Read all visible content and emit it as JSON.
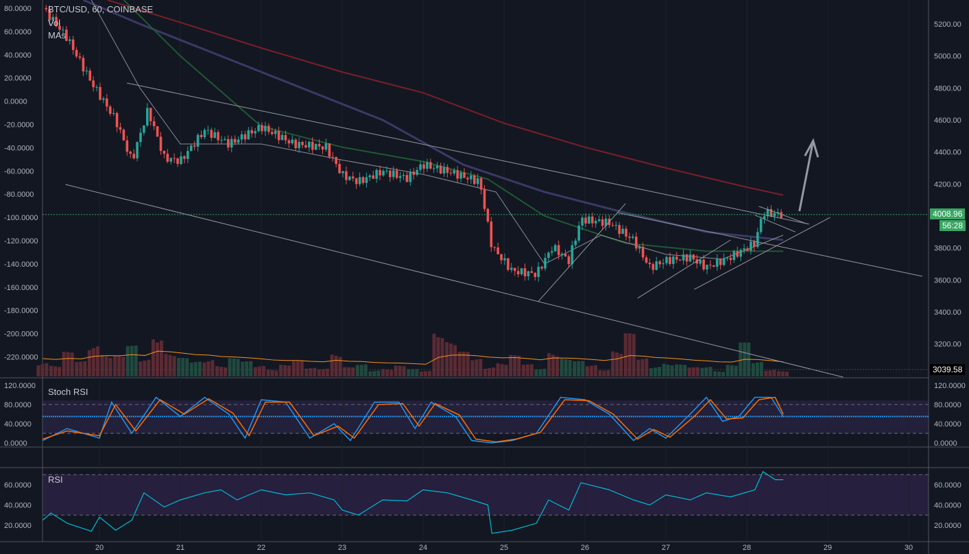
{
  "legend": {
    "symbol": "BTC/USD, 60, COINBASE",
    "vol": "Vol",
    "mas": "MAs",
    "stoch": "Stoch RSI",
    "rsi": "RSI"
  },
  "price_tag": {
    "price": "4008.96",
    "countdown": "56:28",
    "volume_tag": "3039.58",
    "color": "#3aa563"
  },
  "colors": {
    "up": "#26a69a",
    "down": "#ef5350",
    "bg": "#131722",
    "ma_fast": "#8a8d96",
    "ma_mid": "#1f5a32",
    "ma_slow": "#3a3a66",
    "ma_200": "#7a1f28",
    "stoch_k": "#2196f3",
    "stoch_d": "#ff6d00",
    "rsi": "#00bcd4",
    "level": "#2196f3"
  },
  "chart_data": [
    {
      "type": "candlestick",
      "title": "BTC/USD, 60, COINBASE",
      "x_ticks": [
        "20",
        "21",
        "22",
        "23",
        "24",
        "25",
        "26",
        "27",
        "28",
        "29",
        "30"
      ],
      "y_ticks_right": [
        "5200.00",
        "5000.00",
        "4800.00",
        "4600.00",
        "4400.00",
        "4200.00",
        "3800.00",
        "3600.00",
        "3400.00",
        "3200.00"
      ],
      "y_ticks_left": [
        "80.0000",
        "60.0000",
        "40.0000",
        "20.0000",
        "0.0000",
        "-20.0000",
        "-40.0000",
        "-60.0000",
        "-80.0000",
        "-100.0000",
        "-120.0000",
        "-140.0000",
        "-160.0000",
        "-180.0000",
        "-200.0000",
        "-220.0000"
      ],
      "ylim": [
        3000,
        5350
      ],
      "close_path": [
        [
          19.3,
          5300
        ],
        [
          19.6,
          5114
        ],
        [
          19.9,
          4836
        ],
        [
          20.2,
          4600
        ],
        [
          20.4,
          4343
        ],
        [
          20.6,
          4664
        ],
        [
          20.8,
          4364
        ],
        [
          21.0,
          4343
        ],
        [
          21.3,
          4536
        ],
        [
          21.6,
          4450
        ],
        [
          22.0,
          4557
        ],
        [
          22.4,
          4450
        ],
        [
          22.8,
          4429
        ],
        [
          23.0,
          4257
        ],
        [
          23.2,
          4214
        ],
        [
          23.5,
          4279
        ],
        [
          23.8,
          4236
        ],
        [
          24.0,
          4321
        ],
        [
          24.3,
          4279
        ],
        [
          24.7,
          4214
        ],
        [
          24.85,
          3807
        ],
        [
          25.1,
          3657
        ],
        [
          25.4,
          3636
        ],
        [
          25.6,
          3807
        ],
        [
          25.8,
          3721
        ],
        [
          25.95,
          3979
        ],
        [
          26.3,
          3957
        ],
        [
          26.6,
          3850
        ],
        [
          26.8,
          3679
        ],
        [
          27.0,
          3721
        ],
        [
          27.3,
          3743
        ],
        [
          27.5,
          3679
        ],
        [
          27.8,
          3743
        ],
        [
          28.1,
          3829
        ],
        [
          28.2,
          4021
        ],
        [
          28.45,
          4009
        ]
      ],
      "ma_200": [
        [
          20.1,
          5350
        ],
        [
          21,
          5210
        ],
        [
          22,
          5050
        ],
        [
          23,
          4900
        ],
        [
          24,
          4770
        ],
        [
          25,
          4580
        ],
        [
          26,
          4430
        ],
        [
          27,
          4300
        ],
        [
          28,
          4180
        ],
        [
          28.45,
          4130
        ]
      ],
      "ma_100": [
        [
          19.8,
          5350
        ],
        [
          20.5,
          5200
        ],
        [
          21.5,
          5000
        ],
        [
          22.5,
          4800
        ],
        [
          23.5,
          4600
        ],
        [
          24.5,
          4320
        ],
        [
          25.5,
          4150
        ],
        [
          26.5,
          4020
        ],
        [
          27.5,
          3900
        ],
        [
          28.45,
          3850
        ]
      ],
      "ma_50": [
        [
          20.3,
          5350
        ],
        [
          21,
          5000
        ],
        [
          22,
          4560
        ],
        [
          23,
          4430
        ],
        [
          24,
          4340
        ],
        [
          24.8,
          4230
        ],
        [
          25.5,
          4000
        ],
        [
          26.5,
          3830
        ],
        [
          27.5,
          3780
        ],
        [
          28.45,
          3780
        ]
      ],
      "ma_20": [
        [
          19.9,
          5350
        ],
        [
          20.5,
          4800
        ],
        [
          21,
          4450
        ],
        [
          22,
          4450
        ],
        [
          23,
          4350
        ],
        [
          24,
          4260
        ],
        [
          24.9,
          4150
        ],
        [
          25.5,
          3700
        ],
        [
          26.2,
          3880
        ],
        [
          27,
          3760
        ],
        [
          27.7,
          3730
        ],
        [
          28.45,
          3880
        ]
      ],
      "trendlines": [
        [
          [
            20.34,
            4831
          ],
          [
            28.77,
            3949
          ]
        ],
        [
          [
            19.58,
            4197
          ],
          [
            29.19,
            2993
          ]
        ],
        [
          [
            26.4,
            4021
          ],
          [
            30.17,
            3623
          ]
        ],
        [
          [
            25.42,
            3464
          ],
          [
            26.5,
            4077
          ]
        ],
        [
          [
            26.65,
            3486
          ],
          [
            27.8,
            3850
          ]
        ],
        [
          [
            27.35,
            3541
          ],
          [
            29.03,
            3991
          ]
        ],
        [
          [
            28.15,
            4060
          ],
          [
            28.75,
            3950
          ]
        ],
        [
          [
            28.1,
            4005
          ],
          [
            28.6,
            3900
          ]
        ]
      ],
      "arrow": [
        [
          28.65,
          4030
        ],
        [
          28.82,
          4470
        ]
      ],
      "last_price": 4008.96,
      "volume": [
        30,
        20,
        40,
        25,
        60,
        45,
        35,
        50,
        30,
        90,
        40,
        30,
        25,
        35,
        20,
        30,
        25,
        20,
        15,
        20,
        25,
        15,
        18,
        40,
        15,
        20,
        12,
        15,
        18,
        12,
        10,
        100,
        60,
        40,
        30,
        20,
        25,
        35,
        20,
        15,
        50,
        30,
        25,
        20,
        15,
        45,
        70,
        30,
        20,
        25,
        20,
        15,
        18,
        12,
        20,
        55,
        25,
        15,
        10
      ],
      "volume_ma_value": 3039.58
    },
    {
      "type": "line",
      "title": "Stoch RSI",
      "y_ticks": [
        "120.0000",
        "80.0000",
        "40.0000",
        "0.0000"
      ],
      "ylim": [
        0,
        120
      ],
      "bands": [
        20,
        80
      ],
      "level": 55,
      "k": [
        [
          19.3,
          5
        ],
        [
          19.6,
          30
        ],
        [
          20.0,
          10
        ],
        [
          20.15,
          85
        ],
        [
          20.4,
          20
        ],
        [
          20.7,
          95
        ],
        [
          21.0,
          55
        ],
        [
          21.3,
          95
        ],
        [
          21.6,
          60
        ],
        [
          21.8,
          10
        ],
        [
          22.0,
          90
        ],
        [
          22.3,
          85
        ],
        [
          22.6,
          10
        ],
        [
          22.9,
          40
        ],
        [
          23.1,
          5
        ],
        [
          23.4,
          85
        ],
        [
          23.7,
          85
        ],
        [
          23.9,
          30
        ],
        [
          24.1,
          85
        ],
        [
          24.4,
          55
        ],
        [
          24.6,
          5
        ],
        [
          24.85,
          0
        ],
        [
          25.1,
          5
        ],
        [
          25.4,
          20
        ],
        [
          25.7,
          95
        ],
        [
          26.0,
          90
        ],
        [
          26.3,
          60
        ],
        [
          26.6,
          5
        ],
        [
          26.8,
          30
        ],
        [
          27.0,
          10
        ],
        [
          27.3,
          60
        ],
        [
          27.5,
          95
        ],
        [
          27.7,
          45
        ],
        [
          27.9,
          55
        ],
        [
          28.1,
          95
        ],
        [
          28.3,
          95
        ],
        [
          28.45,
          55
        ]
      ],
      "d": [
        [
          19.3,
          8
        ],
        [
          19.6,
          25
        ],
        [
          20.0,
          15
        ],
        [
          20.2,
          80
        ],
        [
          20.45,
          25
        ],
        [
          20.75,
          90
        ],
        [
          21.05,
          60
        ],
        [
          21.35,
          92
        ],
        [
          21.65,
          62
        ],
        [
          21.85,
          15
        ],
        [
          22.05,
          85
        ],
        [
          22.35,
          85
        ],
        [
          22.65,
          15
        ],
        [
          22.95,
          35
        ],
        [
          23.15,
          10
        ],
        [
          23.45,
          80
        ],
        [
          23.75,
          82
        ],
        [
          23.95,
          35
        ],
        [
          24.15,
          82
        ],
        [
          24.45,
          58
        ],
        [
          24.65,
          8
        ],
        [
          24.9,
          2
        ],
        [
          25.15,
          8
        ],
        [
          25.45,
          22
        ],
        [
          25.75,
          90
        ],
        [
          26.05,
          88
        ],
        [
          26.35,
          60
        ],
        [
          26.65,
          8
        ],
        [
          26.85,
          28
        ],
        [
          27.05,
          12
        ],
        [
          27.35,
          55
        ],
        [
          27.55,
          90
        ],
        [
          27.75,
          50
        ],
        [
          27.95,
          52
        ],
        [
          28.15,
          90
        ],
        [
          28.35,
          95
        ],
        [
          28.45,
          60
        ]
      ]
    },
    {
      "type": "line",
      "title": "RSI",
      "y_ticks": [
        "60.0000",
        "40.0000",
        "20.0000"
      ],
      "ylim": [
        5,
        75
      ],
      "bands": [
        30,
        70
      ],
      "rsi": [
        [
          19.3,
          25
        ],
        [
          19.4,
          32
        ],
        [
          19.6,
          22
        ],
        [
          19.9,
          14
        ],
        [
          20.0,
          28
        ],
        [
          20.2,
          15
        ],
        [
          20.4,
          25
        ],
        [
          20.55,
          52
        ],
        [
          20.8,
          38
        ],
        [
          21.0,
          45
        ],
        [
          21.3,
          52
        ],
        [
          21.5,
          55
        ],
        [
          21.7,
          45
        ],
        [
          22.0,
          55
        ],
        [
          22.3,
          50
        ],
        [
          22.6,
          52
        ],
        [
          22.9,
          45
        ],
        [
          23.0,
          35
        ],
        [
          23.2,
          30
        ],
        [
          23.5,
          45
        ],
        [
          23.8,
          44
        ],
        [
          24.0,
          55
        ],
        [
          24.3,
          52
        ],
        [
          24.6,
          45
        ],
        [
          24.8,
          40
        ],
        [
          24.85,
          12
        ],
        [
          25.1,
          15
        ],
        [
          25.4,
          22
        ],
        [
          25.55,
          45
        ],
        [
          25.8,
          35
        ],
        [
          25.95,
          62
        ],
        [
          26.3,
          55
        ],
        [
          26.6,
          45
        ],
        [
          26.8,
          40
        ],
        [
          27.0,
          50
        ],
        [
          27.3,
          45
        ],
        [
          27.5,
          52
        ],
        [
          27.8,
          48
        ],
        [
          28.1,
          55
        ],
        [
          28.2,
          73
        ],
        [
          28.35,
          65
        ],
        [
          28.45,
          65
        ]
      ]
    }
  ]
}
